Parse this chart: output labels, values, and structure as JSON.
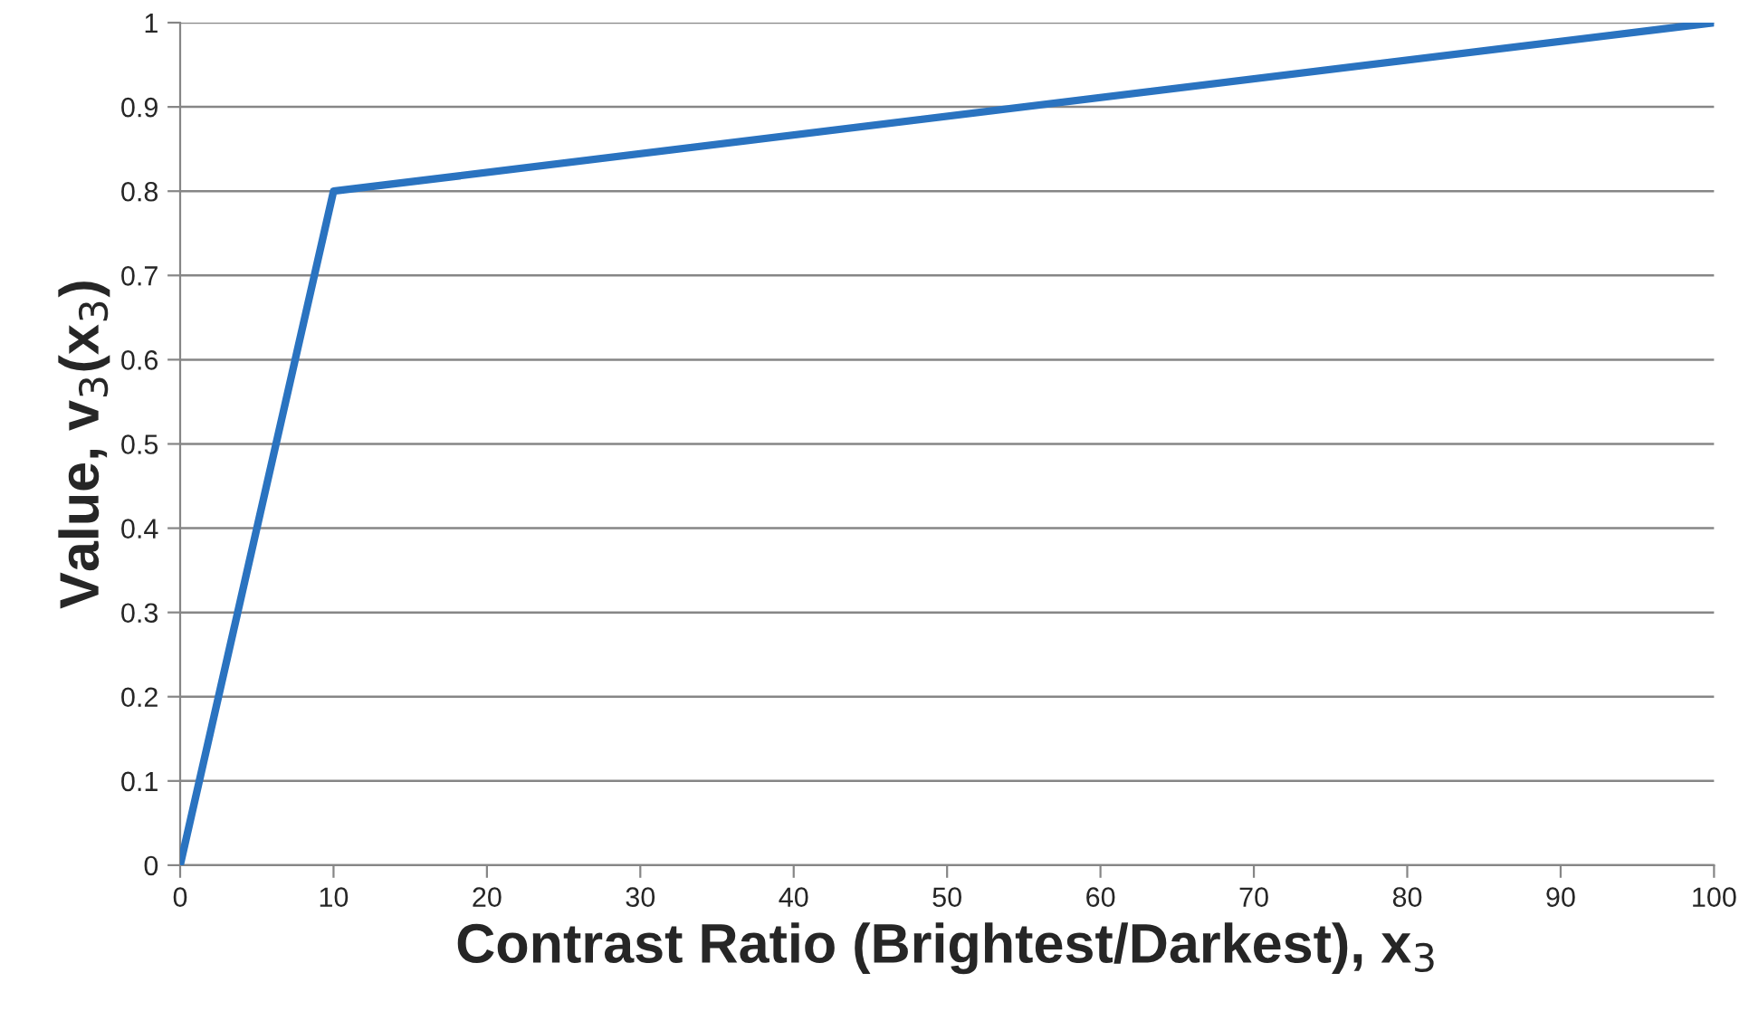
{
  "chart_data": {
    "type": "line",
    "xlabel": "Contrast Ratio (Brightest/Darkest), x$_{3}$",
    "ylabel": "Value, v$_{3}$(x$_{3}$)",
    "x": [
      0,
      10,
      100
    ],
    "series": [
      {
        "color": "#2a73c0",
        "values": [
          0,
          0.8,
          1
        ]
      }
    ],
    "xlim": [
      0,
      100
    ],
    "xticks": [
      0,
      10,
      20,
      30,
      40,
      50,
      60,
      70,
      80,
      90,
      100
    ],
    "ylim": [
      0,
      1
    ],
    "yticks": [
      0,
      0.1,
      0.2,
      0.3,
      0.4,
      0.5,
      0.6,
      0.7,
      0.8,
      0.9,
      1
    ],
    "grid": "y",
    "marker": "none",
    "line_style": "solid"
  }
}
